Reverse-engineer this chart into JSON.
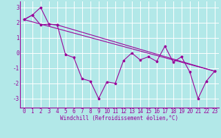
{
  "xlabel": "Windchill (Refroidissement éolien,°C)",
  "background_color": "#b2e8e8",
  "grid_color": "#ffffff",
  "line_color": "#990099",
  "spine_color": "#990099",
  "xlim": [
    -0.5,
    23.5
  ],
  "ylim": [
    -3.6,
    3.4
  ],
  "yticks": [
    -3,
    -2,
    -1,
    0,
    1,
    2,
    3
  ],
  "xticks": [
    0,
    1,
    2,
    3,
    4,
    5,
    6,
    7,
    8,
    9,
    10,
    11,
    12,
    13,
    14,
    15,
    16,
    17,
    18,
    19,
    20,
    21,
    22,
    23
  ],
  "line1_x": [
    0,
    1,
    2,
    3,
    4,
    5,
    6,
    7,
    8,
    9,
    10,
    11,
    12,
    13,
    14,
    15,
    16,
    17,
    18,
    19,
    20,
    21,
    22,
    23
  ],
  "line1_y": [
    2.2,
    2.5,
    3.0,
    1.9,
    1.85,
    -0.1,
    -0.3,
    -1.7,
    -1.85,
    -3.0,
    -1.9,
    -2.0,
    -0.5,
    0.0,
    -0.45,
    -0.25,
    -0.55,
    0.45,
    -0.6,
    -0.25,
    -1.25,
    -3.0,
    -1.85,
    -1.2
  ],
  "line2_x": [
    0,
    1,
    2,
    3,
    4,
    23
  ],
  "line2_y": [
    2.2,
    2.5,
    1.85,
    1.9,
    1.85,
    -1.2
  ],
  "line3_x": [
    0,
    23
  ],
  "line3_y": [
    2.2,
    -1.2
  ],
  "xlabel_fontsize": 5.5,
  "tick_fontsize": 5.5,
  "lw": 0.8,
  "ms": 2.5
}
